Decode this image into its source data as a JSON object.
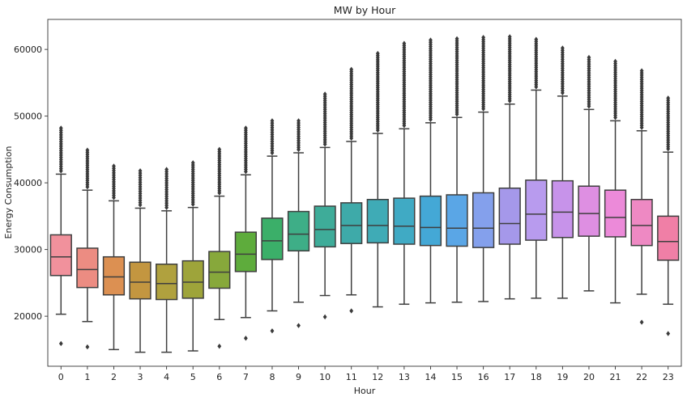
{
  "chart_data": {
    "type": "box",
    "title": "MW by Hour",
    "xlabel": "Hour",
    "ylabel": "Energy Consumption",
    "ylim": [
      12500,
      64500
    ],
    "yticks": [
      20000,
      30000,
      40000,
      50000,
      60000
    ],
    "grid": false,
    "legend": "none",
    "categories": [
      "0",
      "1",
      "2",
      "3",
      "4",
      "5",
      "6",
      "7",
      "8",
      "9",
      "10",
      "11",
      "12",
      "13",
      "14",
      "15",
      "16",
      "17",
      "18",
      "19",
      "20",
      "21",
      "22",
      "23"
    ],
    "box_stats": [
      {
        "whislo": 20300,
        "q1": 26100,
        "med": 28900,
        "q3": 32200,
        "whishi": 41300,
        "upper_outlier_max": 48200,
        "low_outliers": [
          15900
        ]
      },
      {
        "whislo": 19200,
        "q1": 24300,
        "med": 27000,
        "q3": 30200,
        "whishi": 38900,
        "upper_outlier_max": 44900,
        "low_outliers": [
          15400
        ]
      },
      {
        "whislo": 15000,
        "q1": 23200,
        "med": 25900,
        "q3": 28900,
        "whishi": 37300,
        "upper_outlier_max": 42500,
        "low_outliers": []
      },
      {
        "whislo": 14600,
        "q1": 22600,
        "med": 25100,
        "q3": 28100,
        "whishi": 36200,
        "upper_outlier_max": 41800,
        "low_outliers": []
      },
      {
        "whislo": 14600,
        "q1": 22500,
        "med": 24900,
        "q3": 27800,
        "whishi": 35800,
        "upper_outlier_max": 42000,
        "low_outliers": []
      },
      {
        "whislo": 14800,
        "q1": 22700,
        "med": 25100,
        "q3": 28300,
        "whishi": 36300,
        "upper_outlier_max": 43000,
        "low_outliers": []
      },
      {
        "whislo": 19500,
        "q1": 24200,
        "med": 26600,
        "q3": 29700,
        "whishi": 38000,
        "upper_outlier_max": 45000,
        "low_outliers": [
          15500
        ]
      },
      {
        "whislo": 19800,
        "q1": 26700,
        "med": 29300,
        "q3": 32600,
        "whishi": 41200,
        "upper_outlier_max": 48200,
        "low_outliers": [
          16700
        ]
      },
      {
        "whislo": 20800,
        "q1": 28500,
        "med": 31300,
        "q3": 34700,
        "whishi": 44000,
        "upper_outlier_max": 49300,
        "low_outliers": [
          17800
        ]
      },
      {
        "whislo": 22100,
        "q1": 29800,
        "med": 32300,
        "q3": 35700,
        "whishi": 44500,
        "upper_outlier_max": 49300,
        "low_outliers": [
          18600
        ]
      },
      {
        "whislo": 23100,
        "q1": 30400,
        "med": 33000,
        "q3": 36500,
        "whishi": 45300,
        "upper_outlier_max": 53300,
        "low_outliers": [
          19900
        ]
      },
      {
        "whislo": 23200,
        "q1": 30900,
        "med": 33600,
        "q3": 37000,
        "whishi": 46200,
        "upper_outlier_max": 57000,
        "low_outliers": [
          20800
        ]
      },
      {
        "whislo": 21400,
        "q1": 31000,
        "med": 33600,
        "q3": 37500,
        "whishi": 47400,
        "upper_outlier_max": 59400,
        "low_outliers": []
      },
      {
        "whislo": 21800,
        "q1": 30800,
        "med": 33500,
        "q3": 37700,
        "whishi": 48100,
        "upper_outlier_max": 60900,
        "low_outliers": []
      },
      {
        "whislo": 22000,
        "q1": 30600,
        "med": 33300,
        "q3": 38000,
        "whishi": 49000,
        "upper_outlier_max": 61400,
        "low_outliers": []
      },
      {
        "whislo": 22100,
        "q1": 30500,
        "med": 33200,
        "q3": 38200,
        "whishi": 49800,
        "upper_outlier_max": 61600,
        "low_outliers": []
      },
      {
        "whislo": 22200,
        "q1": 30300,
        "med": 33200,
        "q3": 38500,
        "whishi": 50600,
        "upper_outlier_max": 61800,
        "low_outliers": []
      },
      {
        "whislo": 22600,
        "q1": 30800,
        "med": 33900,
        "q3": 39200,
        "whishi": 51800,
        "upper_outlier_max": 61900,
        "low_outliers": []
      },
      {
        "whislo": 22700,
        "q1": 31400,
        "med": 35300,
        "q3": 40400,
        "whishi": 53900,
        "upper_outlier_max": 61500,
        "low_outliers": []
      },
      {
        "whislo": 22700,
        "q1": 31800,
        "med": 35600,
        "q3": 40300,
        "whishi": 53000,
        "upper_outlier_max": 60200,
        "low_outliers": []
      },
      {
        "whislo": 23800,
        "q1": 32000,
        "med": 35400,
        "q3": 39500,
        "whishi": 51000,
        "upper_outlier_max": 58800,
        "low_outliers": []
      },
      {
        "whislo": 22000,
        "q1": 31900,
        "med": 34800,
        "q3": 38900,
        "whishi": 49300,
        "upper_outlier_max": 58200,
        "low_outliers": []
      },
      {
        "whislo": 23300,
        "q1": 30600,
        "med": 33600,
        "q3": 37500,
        "whishi": 47800,
        "upper_outlier_max": 56800,
        "low_outliers": [
          19100
        ]
      },
      {
        "whislo": 21800,
        "q1": 28400,
        "med": 31200,
        "q3": 35000,
        "whishi": 44600,
        "upper_outlier_max": 52700,
        "low_outliers": [
          17400
        ]
      }
    ],
    "colors": [
      "#f1919c",
      "#ec8c82",
      "#dc9052",
      "#c39640",
      "#b0a13e",
      "#9ea43a",
      "#87a83b",
      "#5eac3c",
      "#3baf69",
      "#3eae87",
      "#3eac99",
      "#3eaaa9",
      "#3fabb6",
      "#40aac4",
      "#44a8d6",
      "#5aa6e6",
      "#84a0ec",
      "#a598ea",
      "#b89bee",
      "#c793ea",
      "#de8fe2",
      "#ec8ad9",
      "#ee89c3",
      "#f07fa6"
    ]
  }
}
